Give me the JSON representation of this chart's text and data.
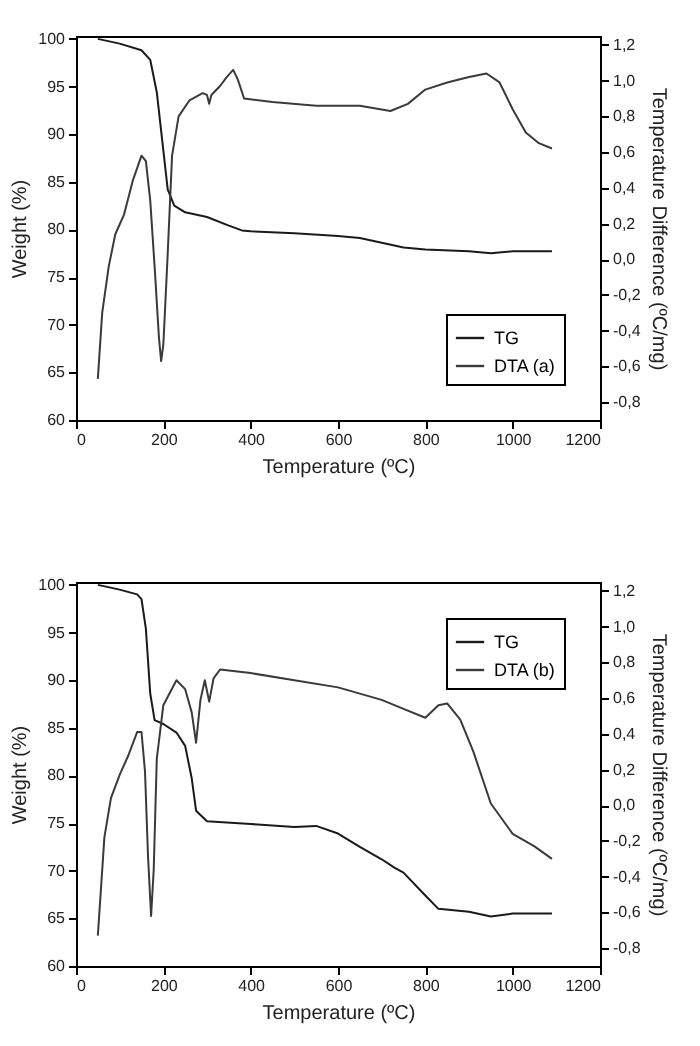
{
  "chart_data": [
    {
      "type": "line",
      "xlabel": "Temperature (ºC)",
      "ylabel": "Weight (%)",
      "y2label": "Temperature Difference (ºC/mg)",
      "xlim": [
        0,
        1200
      ],
      "xticks": [
        0,
        200,
        400,
        600,
        800,
        1000,
        1200
      ],
      "ylim": [
        60,
        100.3
      ],
      "yticks": [
        60,
        65,
        70,
        75,
        80,
        85,
        90,
        95,
        100
      ],
      "y2lim": [
        -0.9,
        1.25
      ],
      "y2ticks": [
        {
          "value": -0.8,
          "label": "-0,8"
        },
        {
          "value": -0.6,
          "label": "-0,6"
        },
        {
          "value": -0.4,
          "label": "-0,4"
        },
        {
          "value": -0.2,
          "label": "-0,2"
        },
        {
          "value": 0,
          "label": "0,0"
        },
        {
          "value": 0.2,
          "label": "0,2"
        },
        {
          "value": 0.4,
          "label": "0,4"
        },
        {
          "value": 0.6,
          "label": "0,6"
        },
        {
          "value": 0.8,
          "label": "0,8"
        },
        {
          "value": 1.0,
          "label": "1,0"
        },
        {
          "value": 1.2,
          "label": "1,2"
        }
      ],
      "legend": "bottom right",
      "series": [
        {
          "name": "TG",
          "color": "#1a1a1a",
          "x": [
            50,
            100,
            150,
            170,
            185,
            200,
            210,
            225,
            250,
            300,
            350,
            380,
            400,
            500,
            600,
            650,
            700,
            750,
            800,
            900,
            950,
            1000,
            1090
          ],
          "values": [
            100,
            99.5,
            98.8,
            97.8,
            94.4,
            88.3,
            84.2,
            82.5,
            81.8,
            81.3,
            80.4,
            79.9,
            79.8,
            79.6,
            79.3,
            79.1,
            78.6,
            78.1,
            77.9,
            77.7,
            77.5,
            77.7,
            77.7
          ]
        },
        {
          "name": "DTA (a)",
          "color": "#3a3a3a",
          "axis": "y2",
          "x": [
            50,
            60,
            75,
            90,
            110,
            130,
            150,
            160,
            170,
            180,
            190,
            195,
            200,
            210,
            220,
            235,
            260,
            290,
            300,
            305,
            310,
            330,
            345,
            360,
            370,
            385,
            450,
            550,
            650,
            720,
            760,
            800,
            850,
            900,
            940,
            970,
            1000,
            1030,
            1060,
            1090
          ],
          "values": [
            -0.67,
            -0.3,
            -0.04,
            0.14,
            0.25,
            0.44,
            0.58,
            0.55,
            0.33,
            -0.04,
            -0.44,
            -0.57,
            -0.48,
            0.03,
            0.58,
            0.8,
            0.89,
            0.93,
            0.92,
            0.87,
            0.92,
            0.97,
            1.02,
            1.06,
            1.01,
            0.9,
            0.88,
            0.86,
            0.86,
            0.83,
            0.87,
            0.95,
            0.99,
            1.02,
            1.04,
            0.99,
            0.84,
            0.71,
            0.65,
            0.62
          ]
        }
      ]
    },
    {
      "type": "line",
      "xlabel": "Temperature (ºC)",
      "ylabel": "Weight (%)",
      "y2label": "Temperature Difference (ºC/mg)",
      "xlim": [
        0,
        1200
      ],
      "xticks": [
        0,
        200,
        400,
        600,
        800,
        1000,
        1200
      ],
      "ylim": [
        60,
        100.3
      ],
      "yticks": [
        60,
        65,
        70,
        75,
        80,
        85,
        90,
        95,
        100
      ],
      "y2lim": [
        -0.9,
        1.25
      ],
      "y2ticks": [
        {
          "value": -0.8,
          "label": "-0,8"
        },
        {
          "value": -0.6,
          "label": "-0,6"
        },
        {
          "value": -0.4,
          "label": "-0,4"
        },
        {
          "value": -0.2,
          "label": "-0,2"
        },
        {
          "value": 0,
          "label": "0,0"
        },
        {
          "value": 0.2,
          "label": "0,2"
        },
        {
          "value": 0.4,
          "label": "0,4"
        },
        {
          "value": 0.6,
          "label": "0,6"
        },
        {
          "value": 0.8,
          "label": "0,8"
        },
        {
          "value": 1.0,
          "label": "1,0"
        },
        {
          "value": 1.2,
          "label": "1,2"
        }
      ],
      "legend": "top right",
      "series": [
        {
          "name": "TG",
          "color": "#1a1a1a",
          "x": [
            50,
            100,
            140,
            150,
            160,
            170,
            180,
            200,
            230,
            250,
            265,
            275,
            300,
            400,
            500,
            550,
            600,
            650,
            700,
            730,
            750,
            800,
            830,
            900,
            950,
            1000,
            1090
          ],
          "values": [
            100,
            99.5,
            99.0,
            98.5,
            95.4,
            88.6,
            85.8,
            85.4,
            84.5,
            83.1,
            79.7,
            76.3,
            75.2,
            74.9,
            74.6,
            74.7,
            73.9,
            72.5,
            71.2,
            70.3,
            69.8,
            67.4,
            66.0,
            65.7,
            65.2,
            65.5,
            65.5
          ]
        },
        {
          "name": "DTA (b)",
          "color": "#3a3a3a",
          "axis": "y2",
          "x": [
            50,
            65,
            80,
            100,
            120,
            140,
            150,
            158,
            165,
            172,
            178,
            185,
            200,
            230,
            250,
            265,
            275,
            285,
            295,
            305,
            315,
            330,
            400,
            500,
            600,
            700,
            750,
            800,
            830,
            850,
            880,
            910,
            950,
            1000,
            1050,
            1090
          ],
          "values": [
            -0.73,
            -0.18,
            0.04,
            0.17,
            0.28,
            0.41,
            0.41,
            0.19,
            -0.29,
            -0.62,
            -0.36,
            0.26,
            0.56,
            0.7,
            0.65,
            0.52,
            0.35,
            0.59,
            0.7,
            0.58,
            0.71,
            0.76,
            0.74,
            0.7,
            0.66,
            0.59,
            0.54,
            0.49,
            0.56,
            0.57,
            0.48,
            0.3,
            0.01,
            -0.16,
            -0.23,
            -0.3
          ]
        }
      ]
    }
  ]
}
